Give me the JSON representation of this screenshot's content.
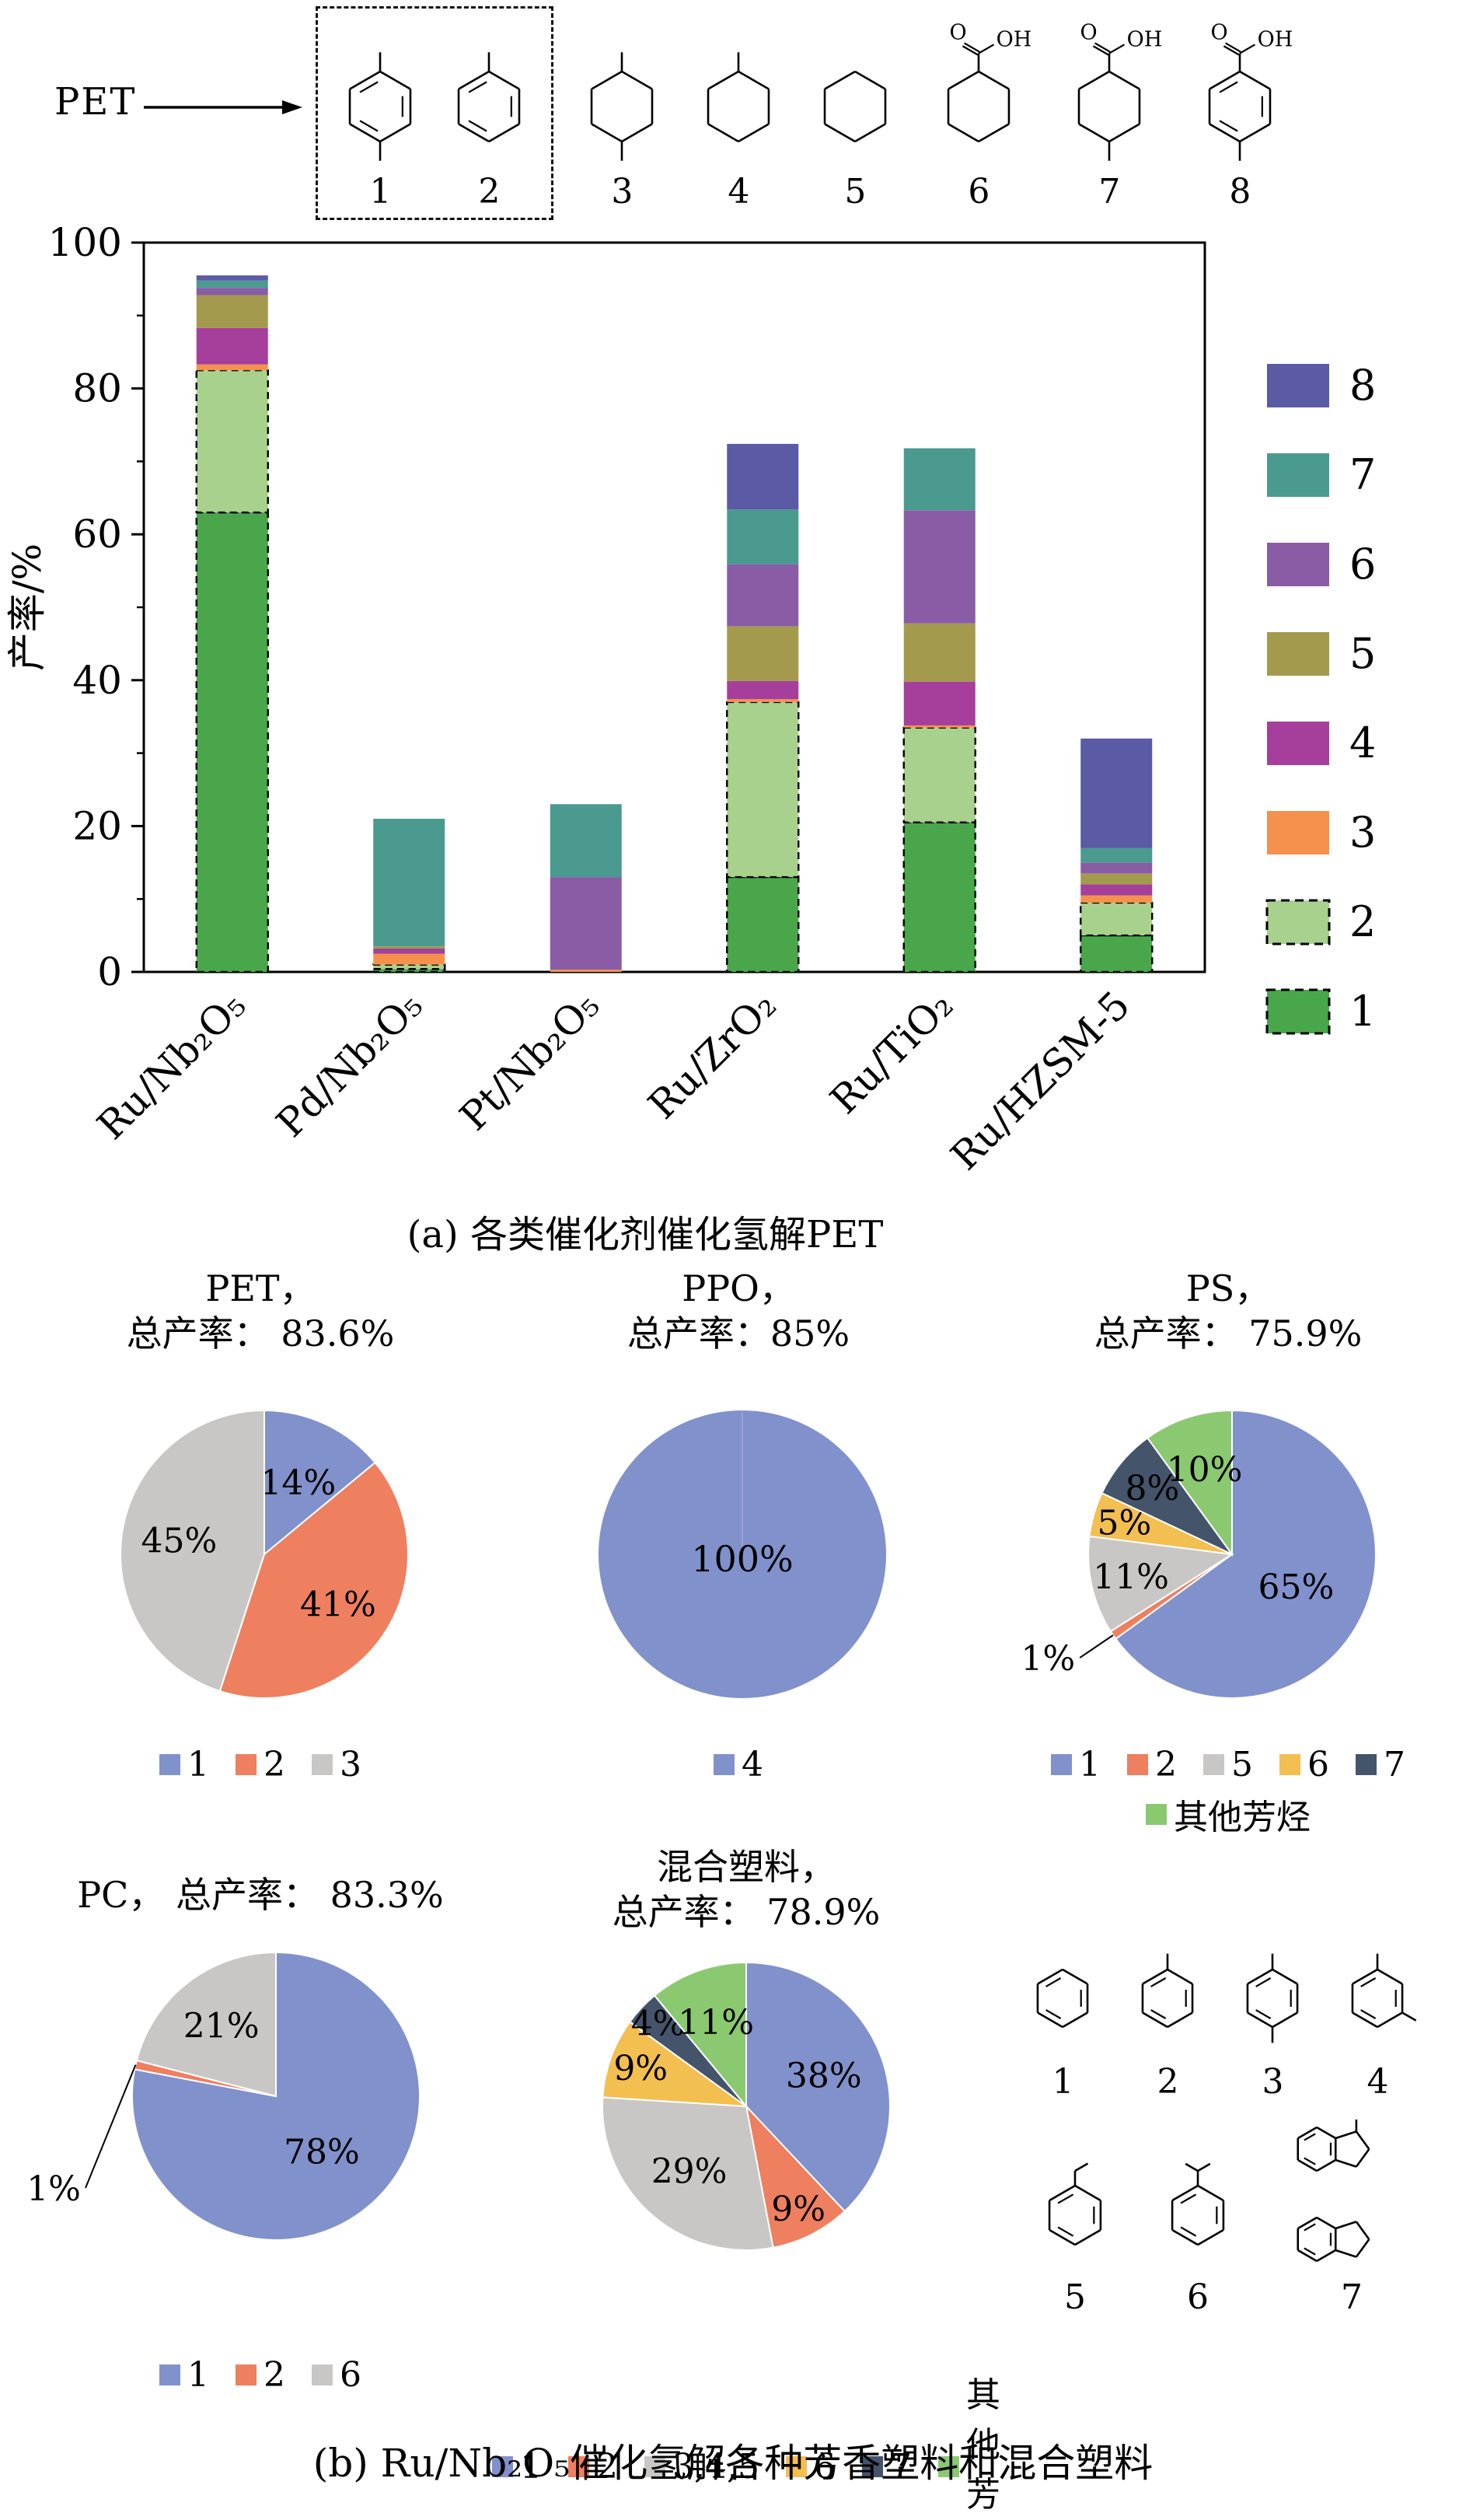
{
  "scheme": {
    "pet_label": "PET",
    "products": [
      {
        "label": "1",
        "kind": "p-xylene",
        "boxed": true
      },
      {
        "label": "2",
        "kind": "toluene",
        "boxed": true
      },
      {
        "label": "3",
        "kind": "dimethylcyclohexane",
        "boxed": false
      },
      {
        "label": "4",
        "kind": "methylcyclohexane",
        "boxed": false
      },
      {
        "label": "5",
        "kind": "cyclohexane",
        "boxed": false
      },
      {
        "label": "6",
        "kind": "cyclohexane-cooh",
        "boxed": false
      },
      {
        "label": "7",
        "kind": "methylcyclohexane-cooh",
        "boxed": false
      },
      {
        "label": "8",
        "kind": "toluic-acid",
        "boxed": false
      }
    ]
  },
  "captions": {
    "a": "(a) 各类催化剂催化氢解PET",
    "b": "(b) Ru/Nb₂O₅催化氢解各种芳香塑料和混合塑料"
  },
  "chart_data": [
    {
      "type": "bar",
      "stacked": true,
      "ylabel": "产率/%",
      "ylim": [
        0,
        100
      ],
      "yticks": [
        0,
        20,
        40,
        60,
        80,
        100
      ],
      "grid": false,
      "legend_position": "right",
      "categories": [
        "Ru/Nb₂O₅",
        "Pd/Nb₂O₅",
        "Pt/Nb₂O₅",
        "Ru/ZrO₂",
        "Ru/TiO₂",
        "Ru/HZSM-5"
      ],
      "series": [
        {
          "name": "1",
          "color": "#4aa64a",
          "dashed": true,
          "values": [
            63,
            0.4,
            0,
            13,
            20.5,
            5
          ]
        },
        {
          "name": "2",
          "color": "#a9d18e",
          "dashed": true,
          "values": [
            19.5,
            0.6,
            0,
            24,
            13,
            4.5
          ]
        },
        {
          "name": "3",
          "color": "#f5914d",
          "dashed": false,
          "values": [
            0.8,
            1.5,
            0.3,
            0.4,
            0.3,
            1
          ]
        },
        {
          "name": "4",
          "color": "#a53f9b",
          "dashed": false,
          "values": [
            5,
            0.7,
            0,
            2.5,
            6,
            1.5
          ]
        },
        {
          "name": "5",
          "color": "#a39a4d",
          "dashed": false,
          "values": [
            4.5,
            0.3,
            0,
            7.5,
            8,
            1.5
          ]
        },
        {
          "name": "6",
          "color": "#8a5ca6",
          "dashed": false,
          "values": [
            1,
            0,
            12.7,
            8.5,
            15.5,
            1.5
          ]
        },
        {
          "name": "7",
          "color": "#4a9a90",
          "dashed": false,
          "values": [
            1,
            17.5,
            10,
            7.5,
            8.5,
            2
          ]
        },
        {
          "name": "8",
          "color": "#5a5aa5",
          "dashed": false,
          "values": [
            0.7,
            0,
            0,
            9,
            0,
            15
          ]
        }
      ]
    },
    {
      "type": "pie",
      "name": "PET",
      "title_line1": "PET，",
      "title_line2": "总产率： 83.6%",
      "total_yield": "83.6%",
      "slices": [
        {
          "label": "1",
          "value": 14,
          "pct_label": "14%",
          "color": "#8191cb",
          "label_f": 0.55
        },
        {
          "label": "2",
          "value": 41,
          "pct_label": "41%",
          "color": "#ee7f5f",
          "label_f": 0.62
        },
        {
          "label": "3",
          "value": 45,
          "pct_label": "45%",
          "color": "#c9c7c6",
          "label_f": 0.6
        }
      ],
      "legend": [
        {
          "label": "1",
          "color": "#8191cb"
        },
        {
          "label": "2",
          "color": "#ee7f5f"
        },
        {
          "label": "3",
          "color": "#c9c7c6"
        }
      ]
    },
    {
      "type": "pie",
      "name": "PPO",
      "title_line1": "PPO，",
      "title_line2": "总产率：85%",
      "total_yield": "85%",
      "slices": [
        {
          "label": "4",
          "value": 100,
          "pct_label": "100%",
          "color": "#8191cb"
        }
      ],
      "legend": [
        {
          "label": "4",
          "color": "#8191cb"
        }
      ]
    },
    {
      "type": "pie",
      "name": "PS",
      "title_line1": "PS，",
      "title_line2": "总产率： 75.9%",
      "total_yield": "75.9%",
      "slices": [
        {
          "label": "1",
          "value": 65,
          "pct_label": "65%",
          "color": "#8191cb",
          "label_f": 0.5
        },
        {
          "label": "2",
          "value": 1,
          "pct_label": "1%",
          "color": "#ee7f5f",
          "outside": true
        },
        {
          "label": "5",
          "value": 11,
          "pct_label": "11%",
          "color": "#c9c7c6",
          "label_f": 0.72
        },
        {
          "label": "6",
          "value": 5,
          "pct_label": "5%",
          "color": "#f3bf51",
          "label_f": 0.78
        },
        {
          "label": "7",
          "value": 8,
          "pct_label": "8%",
          "color": "#44546a",
          "label_f": 0.72
        },
        {
          "label": "其他芳烃",
          "value": 10,
          "pct_label": "10%",
          "color": "#8bc970",
          "label_f": 0.62
        }
      ],
      "legend": [
        {
          "label": "1",
          "color": "#8191cb"
        },
        {
          "label": "2",
          "color": "#ee7f5f"
        },
        {
          "label": "5",
          "color": "#c9c7c6"
        },
        {
          "label": "6",
          "color": "#f3bf51"
        },
        {
          "label": "7",
          "color": "#44546a"
        }
      ],
      "legend_row2": [
        {
          "label": "其他芳烃",
          "color": "#8bc970"
        }
      ]
    },
    {
      "type": "pie",
      "name": "PC",
      "title_line1": "PC， 总产率： 83.3%",
      "title_line2": "",
      "total_yield": "83.3%",
      "slices": [
        {
          "label": "1",
          "value": 78,
          "pct_label": "78%",
          "color": "#8191cb",
          "label_f": 0.5
        },
        {
          "label": "2",
          "value": 1,
          "pct_label": "1%",
          "color": "#ee7f5f",
          "outside": true,
          "leader_dx": -245,
          "leader_dy": 118
        },
        {
          "label": "6",
          "value": 21,
          "pct_label": "21%",
          "color": "#c9c7c6",
          "label_f": 0.62
        }
      ],
      "legend": [
        {
          "label": "1",
          "color": "#8191cb"
        },
        {
          "label": "2",
          "color": "#ee7f5f"
        },
        {
          "label": "6",
          "color": "#c9c7c6"
        }
      ]
    },
    {
      "type": "pie",
      "name": "混合塑料",
      "title_line1": "混合塑料，",
      "title_line2": "总产率： 78.9%",
      "total_yield": "78.9%",
      "slices": [
        {
          "label": "1",
          "value": 38,
          "pct_label": "38%",
          "color": "#8191cb",
          "label_f": 0.58
        },
        {
          "label": "2",
          "value": 9,
          "pct_label": "9%",
          "color": "#ee7f5f",
          "label_f": 0.8
        },
        {
          "label": "3,4,5",
          "value": 29,
          "pct_label": "29%",
          "color": "#c9c7c6",
          "label_f": 0.6
        },
        {
          "label": "6",
          "value": 9,
          "pct_label": "9%",
          "color": "#f3bf51",
          "label_f": 0.78
        },
        {
          "label": "7",
          "value": 4,
          "pct_label": "4%",
          "color": "#44546a",
          "label_f": 0.84
        },
        {
          "label": "其他芳烃",
          "value": 11,
          "pct_label": "11%",
          "color": "#8bc970",
          "label_f": 0.62
        }
      ],
      "legend": [
        {
          "label": "1",
          "color": "#8191cb"
        },
        {
          "label": "2",
          "color": "#ee7f5f"
        },
        {
          "label": "3,4,5",
          "color": "#c9c7c6"
        },
        {
          "label": "6",
          "color": "#f3bf51"
        },
        {
          "label": "7",
          "color": "#44546a"
        },
        {
          "label": "其他芳烃",
          "color": "#8bc970"
        }
      ]
    }
  ],
  "b_structures": {
    "rows": [
      [
        {
          "label": "1",
          "kind": "benzene"
        },
        {
          "label": "2",
          "kind": "toluene"
        },
        {
          "label": "3",
          "kind": "p-xylene"
        },
        {
          "label": "4",
          "kind": "m-xylene"
        }
      ],
      [
        {
          "label": "5",
          "kind": "ethylbenzene"
        },
        {
          "label": "6",
          "kind": "cumene"
        },
        {
          "label": "7",
          "kind": "indane-pair"
        }
      ]
    ]
  }
}
